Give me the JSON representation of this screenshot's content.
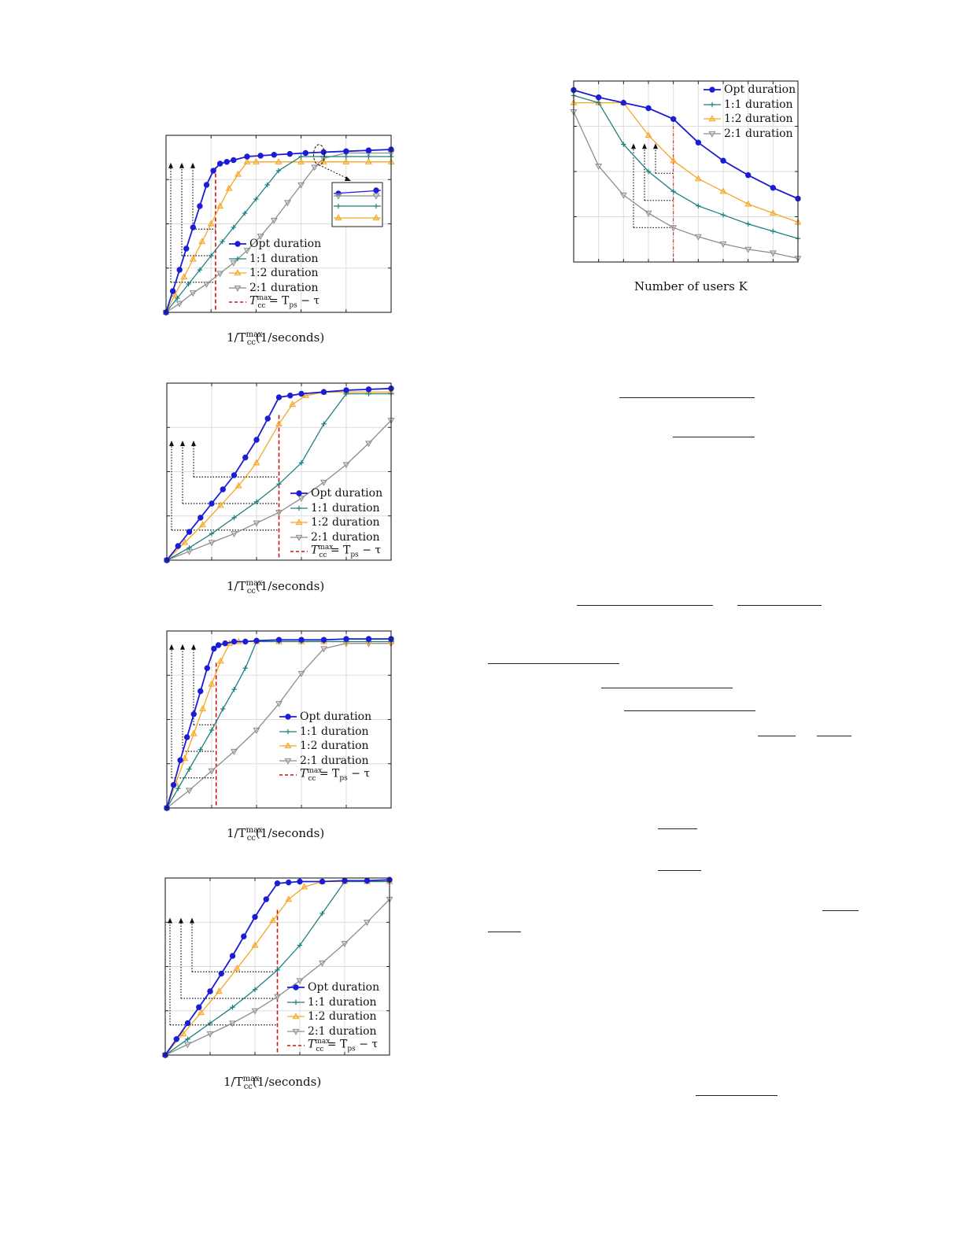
{
  "colors": {
    "opt": "#1c1cd6",
    "one_one": "#1f8080",
    "one_two": "#f5a623",
    "two_one": "#8c8c8c",
    "limit": "#cc1111"
  },
  "legend_labels": {
    "opt": "Opt duration",
    "one_one": "1:1 duration",
    "one_two": "1:2 duration",
    "two_one": "2:1 duration"
  },
  "limit_label": {
    "lhs_sym": "T",
    "lhs_sub": "cc",
    "lhs_sup": "max",
    "rhs": "= T",
    "rhs_sub": "ps",
    "rhs_tail": " − τ"
  },
  "xlabel_users": "Number of users K",
  "xlabel_tcc": {
    "pre": "1/T",
    "sup": "max",
    "sub": "cc",
    "post": "(1/seconds)"
  },
  "chart_data": [
    {
      "id": "panel-1",
      "type": "line",
      "xlabel": "1/T_cc^max (1/seconds)",
      "xlim": [
        0,
        10
      ],
      "ylim": [
        0,
        1
      ],
      "grid": true,
      "legend": "center",
      "limit_x": 2.2,
      "inset": true,
      "series": [
        {
          "name": "Opt duration",
          "key": "opt",
          "marker": "circle",
          "x": [
            0,
            0.3,
            0.6,
            0.9,
            1.2,
            1.5,
            1.8,
            2.1,
            2.4,
            2.7,
            3.0,
            3.6,
            4.2,
            4.8,
            5.5,
            6.2,
            7.0,
            8.0,
            9.0,
            10.0
          ],
          "y": [
            0,
            0.12,
            0.24,
            0.36,
            0.48,
            0.6,
            0.72,
            0.8,
            0.84,
            0.85,
            0.86,
            0.88,
            0.885,
            0.89,
            0.895,
            0.9,
            0.905,
            0.91,
            0.915,
            0.92
          ]
        },
        {
          "name": "1:1 duration",
          "key": "one_one",
          "marker": "plus",
          "x": [
            0,
            0.5,
            1.0,
            1.5,
            2.0,
            2.5,
            3.0,
            3.5,
            4.0,
            4.5,
            5.0,
            6.0,
            7.0,
            8.0,
            9.0,
            10.0
          ],
          "y": [
            0,
            0.08,
            0.16,
            0.24,
            0.32,
            0.4,
            0.48,
            0.56,
            0.64,
            0.72,
            0.8,
            0.88,
            0.88,
            0.88,
            0.88,
            0.88
          ]
        },
        {
          "name": "1:2 duration",
          "key": "one_two",
          "marker": "triangle-up",
          "x": [
            0,
            0.4,
            0.8,
            1.2,
            1.6,
            2.0,
            2.4,
            2.8,
            3.2,
            3.6,
            4.0,
            5.0,
            6.0,
            7.0,
            8.0,
            9.0,
            10.0
          ],
          "y": [
            0,
            0.1,
            0.2,
            0.3,
            0.4,
            0.5,
            0.6,
            0.7,
            0.78,
            0.85,
            0.85,
            0.85,
            0.85,
            0.85,
            0.85,
            0.85,
            0.85
          ]
        },
        {
          "name": "2:1 duration",
          "key": "two_one",
          "marker": "triangle-down",
          "x": [
            0,
            0.6,
            1.2,
            1.8,
            2.4,
            3.0,
            3.6,
            4.2,
            4.8,
            5.4,
            6.0,
            6.6,
            7.0,
            8.0,
            9.0,
            10.0
          ],
          "y": [
            0,
            0.05,
            0.11,
            0.16,
            0.22,
            0.28,
            0.35,
            0.43,
            0.52,
            0.62,
            0.72,
            0.82,
            0.87,
            0.9,
            0.9,
            0.9
          ]
        }
      ]
    },
    {
      "id": "panel-2",
      "type": "line",
      "xlabel": "1/T_cc^max (1/seconds)",
      "xlim": [
        0,
        10
      ],
      "ylim": [
        0,
        1
      ],
      "grid": true,
      "legend": "bottom-right",
      "limit_x": 5.0,
      "series": [
        {
          "name": "Opt duration",
          "key": "opt",
          "marker": "circle",
          "x": [
            0,
            0.5,
            1.0,
            1.5,
            2.0,
            2.5,
            3.0,
            3.5,
            4.0,
            4.5,
            5.0,
            5.5,
            6.0,
            7.0,
            8.0,
            9.0,
            10.0
          ],
          "y": [
            0,
            0.08,
            0.16,
            0.24,
            0.32,
            0.4,
            0.48,
            0.58,
            0.68,
            0.8,
            0.92,
            0.93,
            0.94,
            0.95,
            0.96,
            0.965,
            0.97
          ]
        },
        {
          "name": "1:1 duration",
          "key": "one_one",
          "marker": "plus",
          "x": [
            0,
            1.0,
            2.0,
            3.0,
            4.0,
            5.0,
            6.0,
            7.0,
            8.0,
            9.0,
            10.0
          ],
          "y": [
            0,
            0.07,
            0.15,
            0.24,
            0.33,
            0.43,
            0.55,
            0.77,
            0.94,
            0.94,
            0.94
          ]
        },
        {
          "name": "1:2 duration",
          "key": "one_two",
          "marker": "triangle-up",
          "x": [
            0,
            0.8,
            1.6,
            2.4,
            3.2,
            4.0,
            5.0,
            5.6,
            6.2,
            7.0,
            8.0,
            9.0,
            10.0
          ],
          "y": [
            0,
            0.1,
            0.2,
            0.31,
            0.42,
            0.55,
            0.77,
            0.88,
            0.93,
            0.95,
            0.95,
            0.95,
            0.95
          ]
        },
        {
          "name": "2:1 duration",
          "key": "two_one",
          "marker": "triangle-down",
          "x": [
            0,
            1.0,
            2.0,
            3.0,
            4.0,
            5.0,
            6.0,
            7.0,
            8.0,
            9.0,
            10.0
          ],
          "y": [
            0,
            0.05,
            0.1,
            0.15,
            0.21,
            0.27,
            0.35,
            0.44,
            0.54,
            0.66,
            0.79
          ]
        }
      ]
    },
    {
      "id": "panel-3",
      "type": "line",
      "xlabel": "1/T_cc^max (1/seconds)",
      "xlim": [
        0,
        10
      ],
      "ylim": [
        0,
        1
      ],
      "grid": true,
      "legend": "right",
      "limit_x": 2.2,
      "series": [
        {
          "name": "Opt duration",
          "key": "opt",
          "marker": "circle",
          "x": [
            0,
            0.3,
            0.6,
            0.9,
            1.2,
            1.5,
            1.8,
            2.1,
            2.3,
            2.6,
            3.0,
            3.5,
            4.0,
            5.0,
            6.0,
            7.0,
            8.0,
            9.0,
            10.0
          ],
          "y": [
            0,
            0.13,
            0.27,
            0.4,
            0.53,
            0.66,
            0.79,
            0.9,
            0.92,
            0.93,
            0.94,
            0.94,
            0.945,
            0.95,
            0.95,
            0.95,
            0.955,
            0.955,
            0.955
          ]
        },
        {
          "name": "1:1 duration",
          "key": "one_one",
          "marker": "plus",
          "x": [
            0,
            0.5,
            1.0,
            1.5,
            2.0,
            2.5,
            3.0,
            3.5,
            4.0,
            5.0,
            6.0,
            7.0,
            8.0,
            9.0,
            10.0
          ],
          "y": [
            0,
            0.11,
            0.22,
            0.33,
            0.44,
            0.56,
            0.67,
            0.79,
            0.94,
            0.94,
            0.94,
            0.94,
            0.94,
            0.94,
            0.94
          ]
        },
        {
          "name": "1:2 duration",
          "key": "one_two",
          "marker": "triangle-up",
          "x": [
            0,
            0.4,
            0.8,
            1.2,
            1.6,
            2.0,
            2.4,
            2.8,
            3.2,
            4.0,
            5.0,
            6.0,
            7.0,
            8.0,
            9.0,
            10.0
          ],
          "y": [
            0,
            0.14,
            0.28,
            0.42,
            0.56,
            0.7,
            0.83,
            0.93,
            0.94,
            0.94,
            0.94,
            0.94,
            0.94,
            0.94,
            0.94,
            0.94
          ]
        },
        {
          "name": "2:1 duration",
          "key": "two_one",
          "marker": "triangle-down",
          "x": [
            0,
            1.0,
            2.0,
            3.0,
            4.0,
            5.0,
            6.0,
            7.0,
            8.0,
            9.0,
            10.0
          ],
          "y": [
            0,
            0.1,
            0.21,
            0.32,
            0.44,
            0.59,
            0.76,
            0.9,
            0.93,
            0.93,
            0.93
          ]
        }
      ]
    },
    {
      "id": "panel-4",
      "type": "line",
      "xlabel": "1/T_cc^max (1/seconds)",
      "xlim": [
        0,
        10
      ],
      "ylim": [
        0,
        1
      ],
      "grid": true,
      "legend": "bottom-right",
      "limit_x": 5.0,
      "series": [
        {
          "name": "Opt duration",
          "key": "opt",
          "marker": "circle",
          "x": [
            0,
            0.5,
            1.0,
            1.5,
            2.0,
            2.5,
            3.0,
            3.5,
            4.0,
            4.5,
            5.0,
            5.5,
            6.0,
            7.0,
            8.0,
            9.0,
            10.0
          ],
          "y": [
            0,
            0.09,
            0.18,
            0.27,
            0.36,
            0.46,
            0.56,
            0.67,
            0.78,
            0.88,
            0.97,
            0.975,
            0.98,
            0.98,
            0.985,
            0.985,
            0.99
          ]
        },
        {
          "name": "1:1 duration",
          "key": "one_one",
          "marker": "plus",
          "x": [
            0,
            1.0,
            2.0,
            3.0,
            4.0,
            5.0,
            6.0,
            7.0,
            8.0,
            9.0,
            10.0
          ],
          "y": [
            0,
            0.09,
            0.18,
            0.27,
            0.37,
            0.48,
            0.62,
            0.8,
            0.98,
            0.98,
            0.98
          ]
        },
        {
          "name": "1:2 duration",
          "key": "one_two",
          "marker": "triangle-up",
          "x": [
            0,
            0.8,
            1.6,
            2.4,
            3.2,
            4.0,
            4.8,
            5.5,
            6.2,
            7.0,
            8.0,
            9.0,
            10.0
          ],
          "y": [
            0,
            0.12,
            0.24,
            0.36,
            0.49,
            0.62,
            0.76,
            0.88,
            0.95,
            0.98,
            0.98,
            0.98,
            0.98
          ]
        },
        {
          "name": "2:1 duration",
          "key": "two_one",
          "marker": "triangle-down",
          "x": [
            0,
            1.0,
            2.0,
            3.0,
            4.0,
            5.0,
            6.0,
            7.0,
            8.0,
            9.0,
            10.0
          ],
          "y": [
            0,
            0.06,
            0.12,
            0.18,
            0.25,
            0.33,
            0.42,
            0.52,
            0.63,
            0.75,
            0.88
          ]
        }
      ]
    },
    {
      "id": "panel-users",
      "type": "line",
      "xlabel": "Number of users K",
      "xlim": [
        1,
        10
      ],
      "ylim": [
        0,
        1
      ],
      "grid": true,
      "legend": "top-right",
      "limit_x": 5,
      "series": [
        {
          "name": "Opt duration",
          "key": "opt",
          "marker": "circle",
          "x": [
            1,
            2,
            3,
            4,
            5,
            6,
            7,
            8,
            9,
            10
          ],
          "y": [
            0.95,
            0.91,
            0.88,
            0.85,
            0.79,
            0.66,
            0.56,
            0.48,
            0.41,
            0.35
          ]
        },
        {
          "name": "1:1 duration",
          "key": "one_one",
          "marker": "plus",
          "x": [
            1,
            2,
            3,
            4,
            5,
            6,
            7,
            8,
            9,
            10
          ],
          "y": [
            0.92,
            0.88,
            0.65,
            0.5,
            0.39,
            0.31,
            0.26,
            0.21,
            0.17,
            0.13
          ]
        },
        {
          "name": "1:2 duration",
          "key": "one_two",
          "marker": "triangle-up",
          "x": [
            1,
            2,
            3,
            4,
            5,
            6,
            7,
            8,
            9,
            10
          ],
          "y": [
            0.88,
            0.88,
            0.88,
            0.7,
            0.56,
            0.46,
            0.39,
            0.32,
            0.27,
            0.22
          ]
        },
        {
          "name": "2:1 duration",
          "key": "two_one",
          "marker": "triangle-down",
          "x": [
            1,
            2,
            3,
            4,
            5,
            6,
            7,
            8,
            9,
            10
          ],
          "y": [
            0.83,
            0.53,
            0.37,
            0.27,
            0.19,
            0.14,
            0.1,
            0.07,
            0.05,
            0.02
          ]
        }
      ]
    }
  ]
}
